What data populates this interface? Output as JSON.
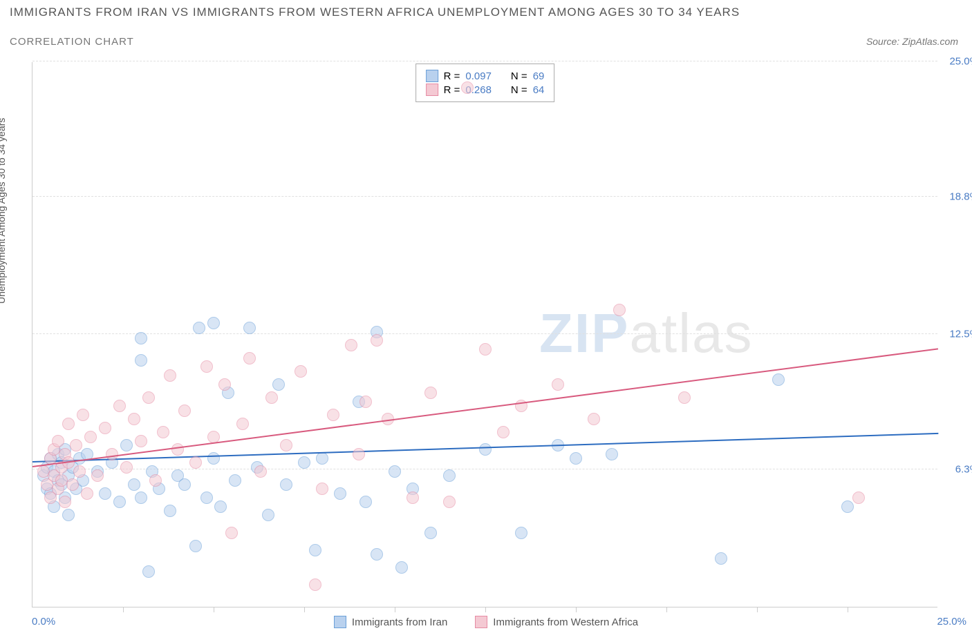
{
  "title": "IMMIGRANTS FROM IRAN VS IMMIGRANTS FROM WESTERN AFRICA UNEMPLOYMENT AMONG AGES 30 TO 34 YEARS",
  "subtitle": "CORRELATION CHART",
  "source_prefix": "Source: ",
  "source_name": "ZipAtlas.com",
  "y_axis_label": "Unemployment Among Ages 30 to 34 years",
  "watermark_zip": "ZIP",
  "watermark_atlas": "atlas",
  "chart": {
    "type": "scatter",
    "xlim": [
      0,
      25
    ],
    "ylim": [
      0,
      25
    ],
    "y_ticks": [
      6.3,
      12.5,
      18.8,
      25.0
    ],
    "y_tick_labels": [
      "6.3%",
      "12.5%",
      "18.8%",
      "25.0%"
    ],
    "x_ticks": [
      2.5,
      5.0,
      7.5,
      10.0,
      12.5,
      15.0,
      17.5,
      20.0,
      22.5
    ],
    "x_origin_label": "0.0%",
    "x_max_label": "25.0%",
    "grid_color": "#e0e0e0",
    "axis_color": "#cccccc",
    "tick_label_color": "#4a7cc4",
    "marker_radius": 9,
    "marker_opacity": 0.55,
    "series": [
      {
        "name": "Immigrants from Iran",
        "fill": "#b9d1ee",
        "stroke": "#6a9fd8",
        "trend_color": "#2c6cc0",
        "R": "0.097",
        "N": "69",
        "trend": {
          "x1": 0,
          "y1": 6.6,
          "x2": 25,
          "y2": 7.9
        },
        "points": [
          [
            0.3,
            6.0
          ],
          [
            0.4,
            5.4
          ],
          [
            0.4,
            6.4
          ],
          [
            0.5,
            5.2
          ],
          [
            0.5,
            6.8
          ],
          [
            0.6,
            4.6
          ],
          [
            0.6,
            6.2
          ],
          [
            0.7,
            5.8
          ],
          [
            0.7,
            7.0
          ],
          [
            0.8,
            5.6
          ],
          [
            0.8,
            6.6
          ],
          [
            0.9,
            5.0
          ],
          [
            0.9,
            7.2
          ],
          [
            1.0,
            6.0
          ],
          [
            1.0,
            4.2
          ],
          [
            1.1,
            6.4
          ],
          [
            1.2,
            5.4
          ],
          [
            1.3,
            6.8
          ],
          [
            1.4,
            5.8
          ],
          [
            1.5,
            7.0
          ],
          [
            1.8,
            6.2
          ],
          [
            2.0,
            5.2
          ],
          [
            2.2,
            6.6
          ],
          [
            2.4,
            4.8
          ],
          [
            2.6,
            7.4
          ],
          [
            2.8,
            5.6
          ],
          [
            3.0,
            11.3
          ],
          [
            3.0,
            5.0
          ],
          [
            3.0,
            12.3
          ],
          [
            3.2,
            1.6
          ],
          [
            3.3,
            6.2
          ],
          [
            3.5,
            5.4
          ],
          [
            3.8,
            4.4
          ],
          [
            4.0,
            6.0
          ],
          [
            4.2,
            5.6
          ],
          [
            4.5,
            2.8
          ],
          [
            4.6,
            12.8
          ],
          [
            4.8,
            5.0
          ],
          [
            5.0,
            13.0
          ],
          [
            5.0,
            6.8
          ],
          [
            5.2,
            4.6
          ],
          [
            5.4,
            9.8
          ],
          [
            5.6,
            5.8
          ],
          [
            6.0,
            12.8
          ],
          [
            6.2,
            6.4
          ],
          [
            6.5,
            4.2
          ],
          [
            6.8,
            10.2
          ],
          [
            7.0,
            5.6
          ],
          [
            7.5,
            6.6
          ],
          [
            7.8,
            2.6
          ],
          [
            8.0,
            6.8
          ],
          [
            8.5,
            5.2
          ],
          [
            9.0,
            9.4
          ],
          [
            9.2,
            4.8
          ],
          [
            9.5,
            12.6
          ],
          [
            9.5,
            2.4
          ],
          [
            10.0,
            6.2
          ],
          [
            10.2,
            1.8
          ],
          [
            10.5,
            5.4
          ],
          [
            11.0,
            3.4
          ],
          [
            11.5,
            6.0
          ],
          [
            12.5,
            7.2
          ],
          [
            13.5,
            3.4
          ],
          [
            14.5,
            7.4
          ],
          [
            15.0,
            6.8
          ],
          [
            16.0,
            7.0
          ],
          [
            19.0,
            2.2
          ],
          [
            20.6,
            10.4
          ],
          [
            22.5,
            4.6
          ]
        ]
      },
      {
        "name": "Immigrants from Western Africa",
        "fill": "#f4c9d3",
        "stroke": "#e68ba3",
        "trend_color": "#d85a7e",
        "R": "0.268",
        "N": "64",
        "trend": {
          "x1": 0,
          "y1": 6.4,
          "x2": 25,
          "y2": 11.8
        },
        "points": [
          [
            0.3,
            6.2
          ],
          [
            0.4,
            5.6
          ],
          [
            0.5,
            6.8
          ],
          [
            0.5,
            5.0
          ],
          [
            0.6,
            7.2
          ],
          [
            0.6,
            6.0
          ],
          [
            0.7,
            5.4
          ],
          [
            0.7,
            7.6
          ],
          [
            0.8,
            6.4
          ],
          [
            0.8,
            5.8
          ],
          [
            0.9,
            7.0
          ],
          [
            0.9,
            4.8
          ],
          [
            1.0,
            6.6
          ],
          [
            1.0,
            8.4
          ],
          [
            1.1,
            5.6
          ],
          [
            1.2,
            7.4
          ],
          [
            1.3,
            6.2
          ],
          [
            1.4,
            8.8
          ],
          [
            1.5,
            5.2
          ],
          [
            1.6,
            7.8
          ],
          [
            1.8,
            6.0
          ],
          [
            2.0,
            8.2
          ],
          [
            2.2,
            7.0
          ],
          [
            2.4,
            9.2
          ],
          [
            2.6,
            6.4
          ],
          [
            2.8,
            8.6
          ],
          [
            3.0,
            7.6
          ],
          [
            3.2,
            9.6
          ],
          [
            3.4,
            5.8
          ],
          [
            3.6,
            8.0
          ],
          [
            3.8,
            10.6
          ],
          [
            4.0,
            7.2
          ],
          [
            4.2,
            9.0
          ],
          [
            4.5,
            6.6
          ],
          [
            4.8,
            11.0
          ],
          [
            5.0,
            7.8
          ],
          [
            5.3,
            10.2
          ],
          [
            5.5,
            3.4
          ],
          [
            5.8,
            8.4
          ],
          [
            6.0,
            11.4
          ],
          [
            6.3,
            6.2
          ],
          [
            6.6,
            9.6
          ],
          [
            7.0,
            7.4
          ],
          [
            7.4,
            10.8
          ],
          [
            7.8,
            1.0
          ],
          [
            8.0,
            5.4
          ],
          [
            8.3,
            8.8
          ],
          [
            8.8,
            12.0
          ],
          [
            9.0,
            7.0
          ],
          [
            9.2,
            9.4
          ],
          [
            9.5,
            12.2
          ],
          [
            9.8,
            8.6
          ],
          [
            10.5,
            5.0
          ],
          [
            11.0,
            9.8
          ],
          [
            11.5,
            4.8
          ],
          [
            12.0,
            23.8
          ],
          [
            12.5,
            11.8
          ],
          [
            13.0,
            8.0
          ],
          [
            13.5,
            9.2
          ],
          [
            14.5,
            10.2
          ],
          [
            15.5,
            8.6
          ],
          [
            16.2,
            13.6
          ],
          [
            18.0,
            9.6
          ],
          [
            22.8,
            5.0
          ]
        ]
      }
    ]
  },
  "legend_top": {
    "r_label": "R =",
    "n_label": "N ="
  },
  "bottom_legend": {}
}
